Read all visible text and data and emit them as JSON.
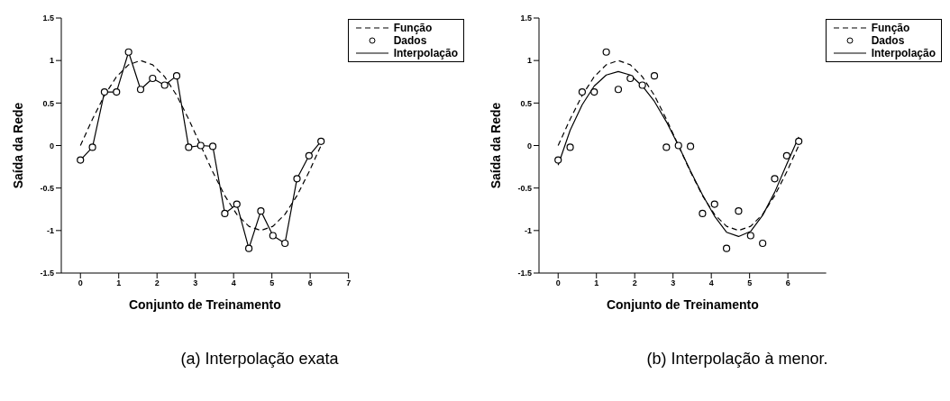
{
  "chart_data": [
    {
      "type": "line",
      "xlabel": "Conjunto de Treinamento",
      "ylabel": "Saída da Rede",
      "annotations": [
        "(a) Interpolação exata"
      ],
      "xlim": [
        -0.5,
        7
      ],
      "xticks": [
        0,
        1,
        2,
        3,
        4,
        5,
        6,
        7
      ],
      "ylim": [
        -1.5,
        1.5
      ],
      "yticks": [
        -1.5,
        -1,
        -0.5,
        0,
        0.5,
        1,
        1.5
      ],
      "grid": false,
      "legend": "top right",
      "series": [
        {
          "name": "Função",
          "type": "line",
          "line_style": "dashed",
          "marker": "none",
          "color": "#000000",
          "x": [
            0,
            0.314,
            0.628,
            0.942,
            1.257,
            1.571,
            1.885,
            2.199,
            2.513,
            2.827,
            3.142,
            3.456,
            3.77,
            4.084,
            4.398,
            4.712,
            5.027,
            5.341,
            5.655,
            5.969,
            6.283
          ],
          "values": [
            0,
            0.31,
            0.59,
            0.81,
            0.95,
            1,
            0.95,
            0.81,
            0.59,
            0.31,
            0,
            -0.31,
            -0.59,
            -0.81,
            -0.95,
            -1,
            -0.95,
            -0.81,
            -0.59,
            -0.31,
            0
          ]
        },
        {
          "name": "Dados",
          "type": "scatter",
          "marker": "circle",
          "color": "#000000",
          "x": [
            0,
            0.314,
            0.628,
            0.942,
            1.257,
            1.571,
            1.885,
            2.199,
            2.513,
            2.827,
            3.142,
            3.456,
            3.77,
            4.084,
            4.398,
            4.712,
            5.027,
            5.341,
            5.655,
            5.969,
            6.283
          ],
          "values": [
            -0.17,
            -0.02,
            0.63,
            0.63,
            1.1,
            0.66,
            0.79,
            0.71,
            0.82,
            -0.02,
            0,
            -0.01,
            -0.8,
            -0.69,
            -1.21,
            -0.77,
            -1.06,
            -1.15,
            -0.39,
            -0.12,
            0.05
          ]
        },
        {
          "name": "Interpolação",
          "type": "line",
          "line_style": "solid",
          "marker": "none",
          "color": "#000000",
          "x": [
            0,
            0.314,
            0.628,
            0.942,
            1.257,
            1.571,
            1.885,
            2.199,
            2.513,
            2.827,
            3.142,
            3.456,
            3.77,
            4.084,
            4.398,
            4.712,
            5.027,
            5.341,
            5.655,
            5.969,
            6.283
          ],
          "values": [
            -0.17,
            -0.02,
            0.63,
            0.63,
            1.1,
            0.66,
            0.79,
            0.71,
            0.82,
            -0.02,
            0,
            -0.01,
            -0.8,
            -0.69,
            -1.21,
            -0.77,
            -1.06,
            -1.15,
            -0.39,
            -0.12,
            0.05
          ]
        }
      ]
    },
    {
      "type": "line",
      "xlabel": "Conjunto de Treinamento",
      "ylabel": "Saída da Rede",
      "annotations": [
        "(b) Interpolação à menor."
      ],
      "xlim": [
        -0.5,
        7
      ],
      "xticks": [
        0,
        1,
        2,
        3,
        4,
        5,
        6
      ],
      "ylim": [
        -1.5,
        1.5
      ],
      "yticks": [
        -1.5,
        -1,
        -0.5,
        0,
        0.5,
        1,
        1.5
      ],
      "grid": false,
      "legend": "top right",
      "series": [
        {
          "name": "Função",
          "type": "line",
          "line_style": "dashed",
          "marker": "none",
          "color": "#000000",
          "x": [
            0,
            0.314,
            0.628,
            0.942,
            1.257,
            1.571,
            1.885,
            2.199,
            2.513,
            2.827,
            3.142,
            3.456,
            3.77,
            4.084,
            4.398,
            4.712,
            5.027,
            5.341,
            5.655,
            5.969,
            6.283
          ],
          "values": [
            0,
            0.31,
            0.59,
            0.81,
            0.95,
            1,
            0.95,
            0.81,
            0.59,
            0.31,
            0,
            -0.31,
            -0.59,
            -0.81,
            -0.95,
            -1,
            -0.95,
            -0.81,
            -0.59,
            -0.31,
            0
          ]
        },
        {
          "name": "Dados",
          "type": "scatter",
          "marker": "circle",
          "color": "#000000",
          "x": [
            0,
            0.314,
            0.628,
            0.942,
            1.257,
            1.571,
            1.885,
            2.199,
            2.513,
            2.827,
            3.142,
            3.456,
            3.77,
            4.084,
            4.398,
            4.712,
            5.027,
            5.341,
            5.655,
            5.969,
            6.283
          ],
          "values": [
            -0.17,
            -0.02,
            0.63,
            0.63,
            1.1,
            0.66,
            0.79,
            0.71,
            0.82,
            -0.02,
            0,
            -0.01,
            -0.8,
            -0.69,
            -1.21,
            -0.77,
            -1.06,
            -1.15,
            -0.39,
            -0.12,
            0.05
          ]
        },
        {
          "name": "Interpolação",
          "type": "line",
          "line_style": "solid",
          "marker": "none",
          "color": "#000000",
          "x": [
            0,
            0.314,
            0.628,
            0.942,
            1.257,
            1.571,
            1.885,
            2.199,
            2.513,
            2.827,
            3.142,
            3.456,
            3.77,
            4.084,
            4.398,
            4.712,
            5.027,
            5.341,
            5.655,
            5.969,
            6.283
          ],
          "values": [
            -0.23,
            0.18,
            0.48,
            0.7,
            0.83,
            0.87,
            0.83,
            0.7,
            0.52,
            0.28,
            0,
            -0.3,
            -0.58,
            -0.83,
            -1.02,
            -1.07,
            -1.01,
            -0.82,
            -0.55,
            -0.22,
            0.1
          ]
        }
      ]
    }
  ]
}
